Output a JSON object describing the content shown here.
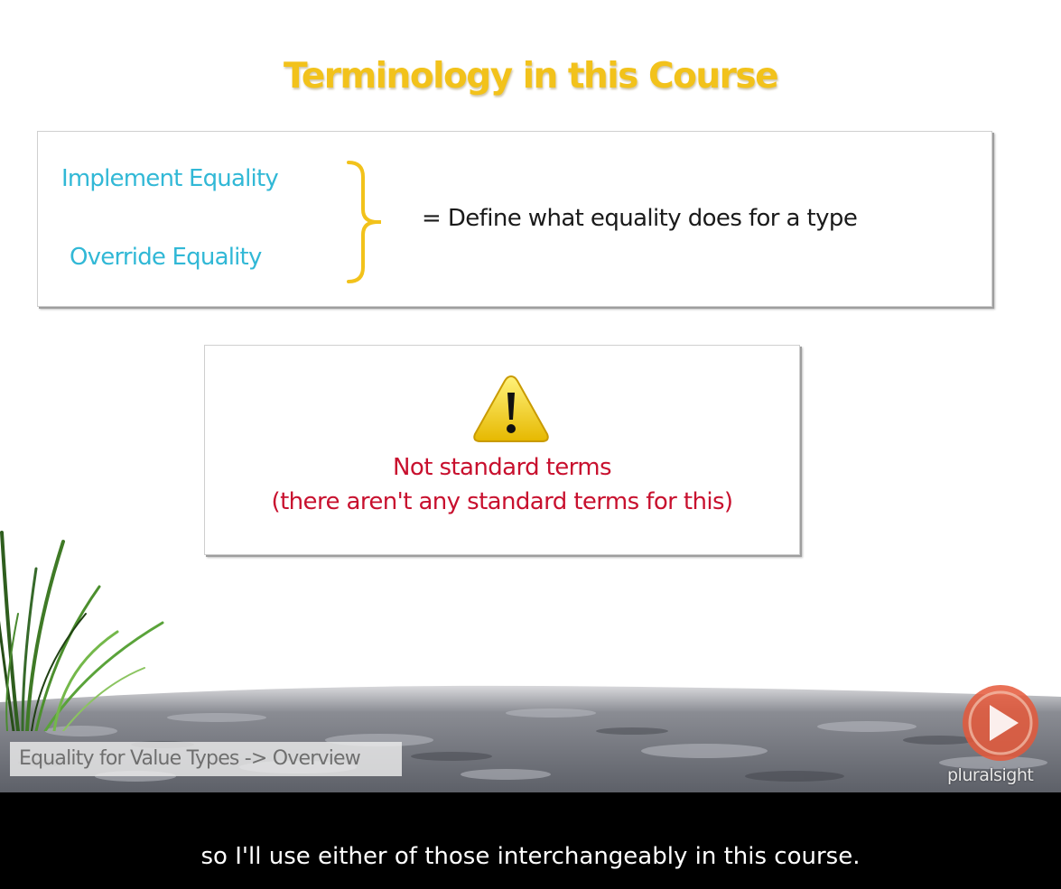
{
  "slide": {
    "title": "Terminology in this Course",
    "terms": [
      "Implement Equality",
      "Override Equality"
    ],
    "definition": "= Define what equality does for a type",
    "note": {
      "line1": "Not standard terms",
      "line2": "(there aren't any standard terms for this)",
      "icon": "warning-icon"
    },
    "breadcrumb": "Equality for Value Types -> Overview",
    "logo_text": "pluralsight"
  },
  "caption": "so I'll use either of those interchangeably in this course.",
  "colors": {
    "title": "#f2c21b",
    "term": "#31b8d6",
    "note": "#c8102e",
    "brace": "#f2c21b",
    "caption_bg": "#000000",
    "logo": "#e5583a"
  }
}
